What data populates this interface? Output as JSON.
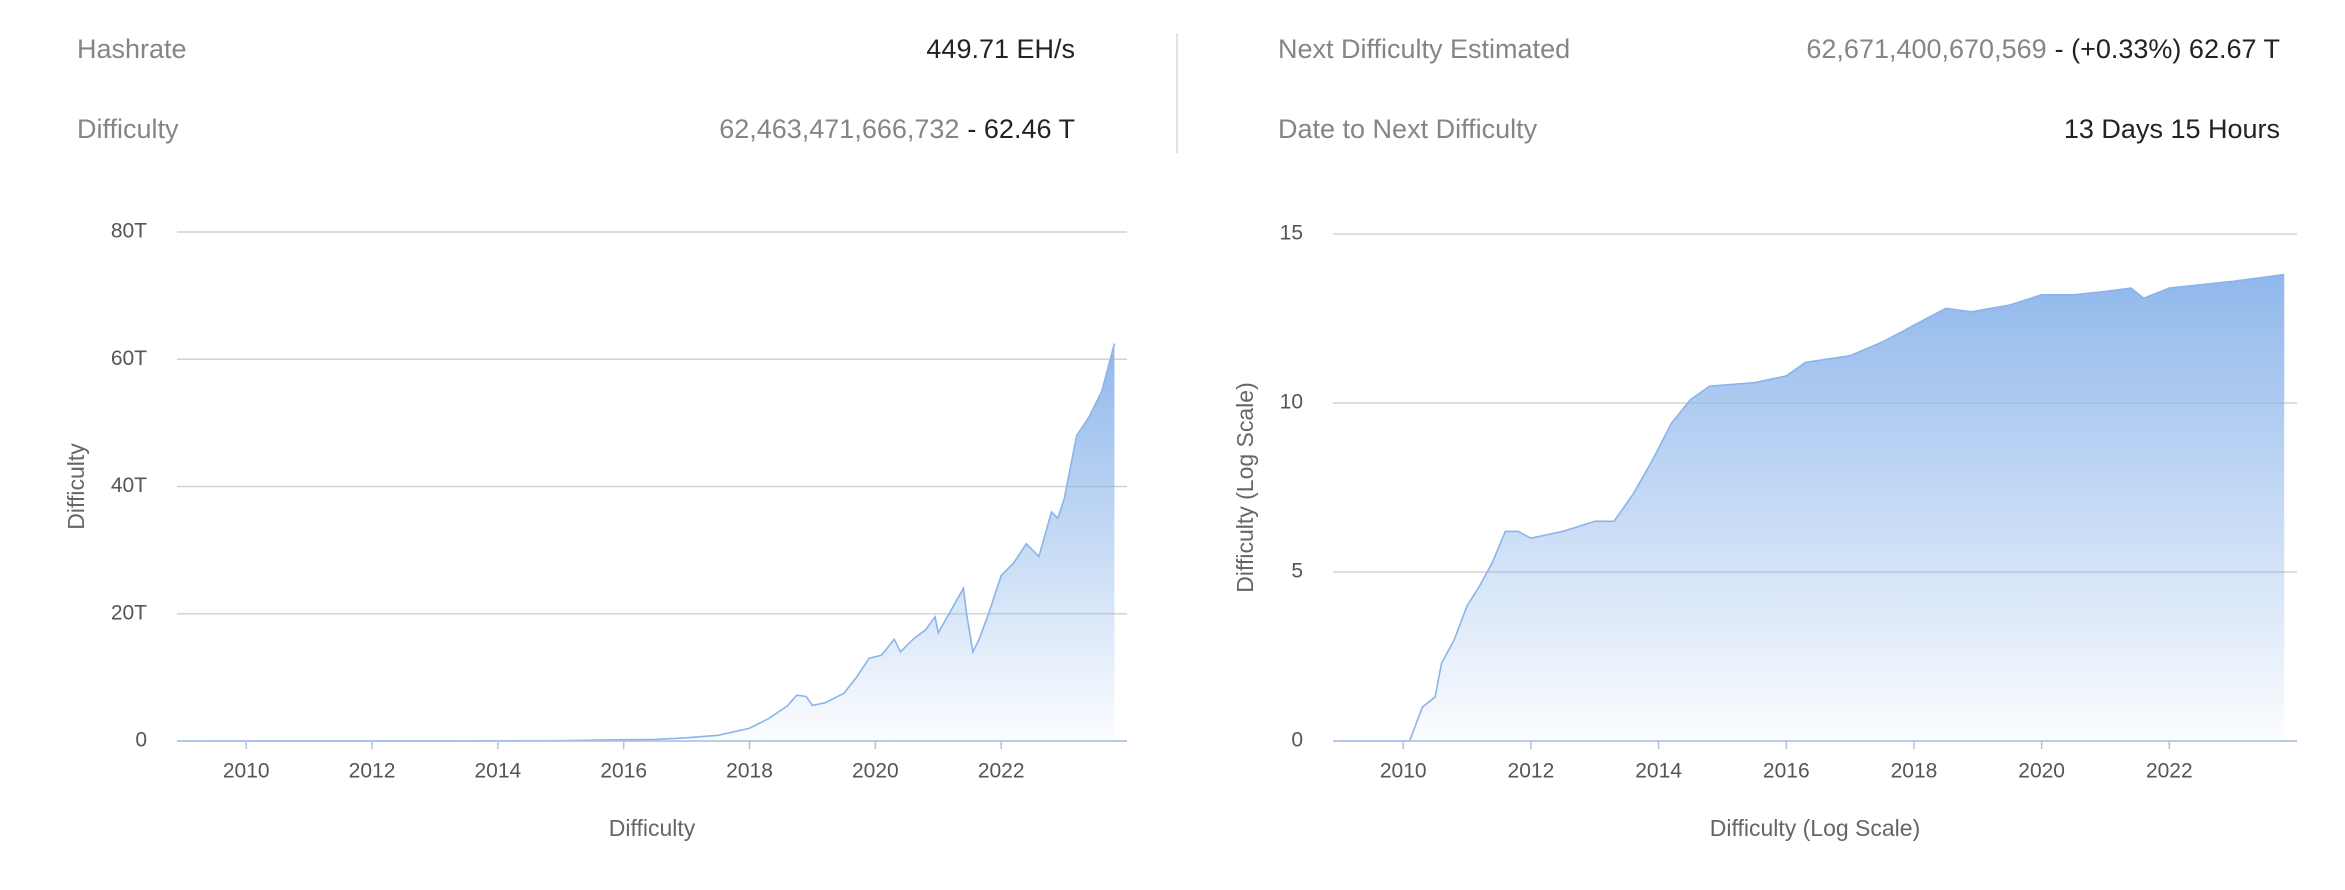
{
  "stats": {
    "hashrate": {
      "label": "Hashrate",
      "value": "449.71 EH/s"
    },
    "difficulty": {
      "label": "Difficulty",
      "value": "62,463,471,666,732",
      "short": "- 62.46 T"
    },
    "next_difficulty": {
      "label": "Next Difficulty Estimated",
      "value": "62,671,400,670,569",
      "short": "- (+0.33%) 62.67 T"
    },
    "date_to_next": {
      "label": "Date to Next Difficulty",
      "value": "13 Days 15 Hours"
    }
  },
  "chart_data": [
    {
      "type": "area",
      "x_label": "Difficulty",
      "y_label": "Difficulty",
      "color": "#8ab4ea",
      "grid": true,
      "x": [
        2009.0,
        2013.0,
        2014.0,
        2015.0,
        2016.0,
        2016.5,
        2017.0,
        2017.5,
        2018.0,
        2018.3,
        2018.6,
        2018.75,
        2018.9,
        2019.0,
        2019.2,
        2019.5,
        2019.7,
        2019.9,
        2020.1,
        2020.3,
        2020.4,
        2020.6,
        2020.8,
        2020.95,
        2021.0,
        2021.2,
        2021.4,
        2021.45,
        2021.55,
        2021.65,
        2021.8,
        2022.0,
        2022.2,
        2022.4,
        2022.6,
        2022.8,
        2022.9,
        2023.0,
        2023.2,
        2023.4,
        2023.6,
        2023.8
      ],
      "values": [
        0,
        10000000000,
        30000000000,
        60000000000,
        200000000000,
        250000000000,
        500000000000,
        900000000000,
        2000000000000,
        3500000000000,
        5500000000000,
        7200000000000,
        7000000000000,
        5600000000000,
        6000000000000,
        7500000000000,
        10000000000000,
        13000000000000,
        13500000000000,
        16000000000000,
        14000000000000,
        16000000000000,
        17500000000000,
        19500000000000,
        17000000000000,
        20500000000000,
        24000000000000,
        20000000000000,
        14000000000000,
        16000000000000,
        20000000000000,
        26000000000000,
        28000000000000,
        31000000000000,
        29000000000000,
        36000000000000,
        35000000000000,
        38000000000000,
        48000000000000,
        51000000000000,
        55000000000000,
        62463471666732
      ],
      "xlim": [
        2008.9,
        2024.0
      ],
      "xticks": [
        2010,
        2012,
        2014,
        2016,
        2018,
        2020,
        2022
      ],
      "ylim": [
        0,
        80000000000000
      ],
      "yticks": [
        0,
        {
          "value": 20000000000000,
          "label": "20T"
        },
        {
          "value": 40000000000000,
          "label": "40T"
        },
        {
          "value": 60000000000000,
          "label": "60T"
        },
        {
          "value": 80000000000000,
          "label": "80T"
        }
      ]
    },
    {
      "type": "area",
      "x_label": "Difficulty (Log Scale)",
      "y_label": "Difficulty (Log Scale)",
      "color": "#8ab4ea",
      "grid": true,
      "x": [
        2009.0,
        2010.1,
        2010.3,
        2010.5,
        2010.6,
        2010.8,
        2011.0,
        2011.2,
        2011.4,
        2011.6,
        2011.8,
        2012.0,
        2012.5,
        2013.0,
        2013.3,
        2013.6,
        2013.9,
        2014.2,
        2014.5,
        2014.8,
        2015.5,
        2016.0,
        2016.3,
        2017.0,
        2017.5,
        2018.0,
        2018.5,
        2018.9,
        2019.5,
        2020.0,
        2020.5,
        2021.0,
        2021.4,
        2021.6,
        2022.0,
        2022.5,
        2023.0,
        2023.8
      ],
      "values": [
        0,
        0,
        1.0,
        1.3,
        2.3,
        3.0,
        4.0,
        4.6,
        5.3,
        6.2,
        6.2,
        6.0,
        6.2,
        6.5,
        6.5,
        7.3,
        8.3,
        9.4,
        10.1,
        10.5,
        10.6,
        10.8,
        11.2,
        11.4,
        11.8,
        12.3,
        12.8,
        12.7,
        12.9,
        13.2,
        13.2,
        13.3,
        13.4,
        13.1,
        13.4,
        13.5,
        13.6,
        13.8
      ],
      "xlim": [
        2008.9,
        2024.0
      ],
      "xticks": [
        2010,
        2012,
        2014,
        2016,
        2018,
        2020,
        2022
      ],
      "ylim": [
        0,
        15
      ],
      "yticks": [
        0,
        5,
        10,
        15
      ]
    }
  ]
}
